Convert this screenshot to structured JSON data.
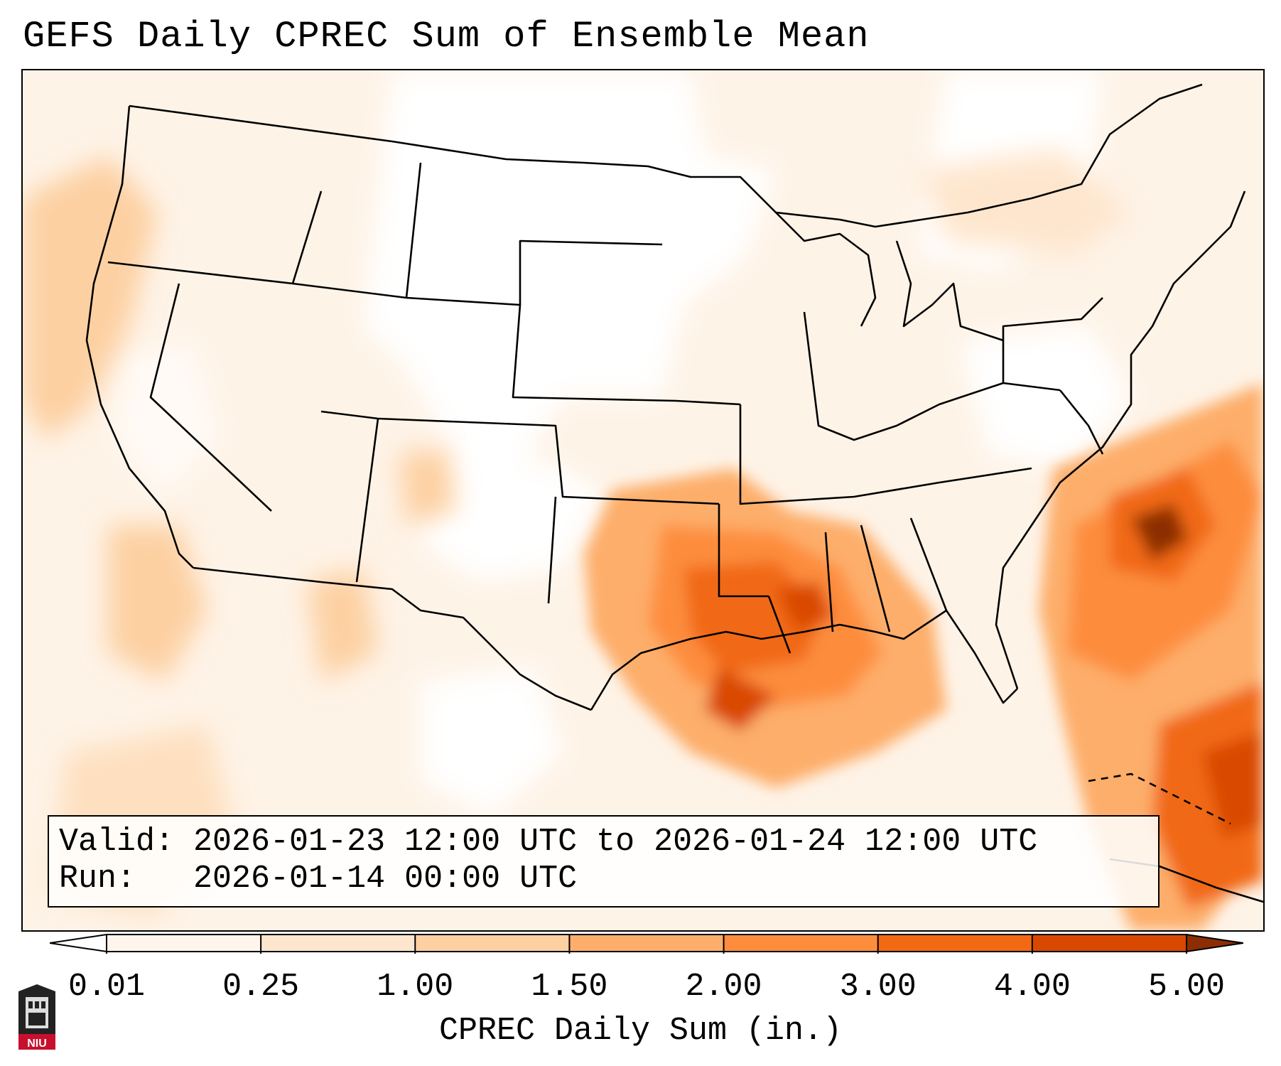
{
  "title": "GEFS Daily CPREC Sum of Ensemble Mean",
  "info": {
    "valid_line": "Valid: 2026-01-23 12:00 UTC to 2026-01-24 12:00 UTC",
    "run_line": "Run:   2026-01-14 00:00 UTC"
  },
  "colorbar": {
    "label": "CPREC Daily Sum (in.)",
    "ticks": [
      "0.01",
      "0.25",
      "1.00",
      "1.50",
      "2.00",
      "3.00",
      "4.00",
      "5.00"
    ],
    "colors": [
      "#fff5ec",
      "#fee6ce",
      "#fdd0a2",
      "#fdae6b",
      "#fd8d3c",
      "#f16913",
      "#d94801",
      "#8c2d04"
    ]
  },
  "logo": {
    "text": "NIU"
  },
  "precip_features": [
    {
      "region": "Lower Mississippi Valley",
      "level": 3.0
    },
    {
      "region": "Western Atlantic off Carolinas",
      "level": 5.0
    },
    {
      "region": "Northern Caribbean",
      "level": 5.0
    },
    {
      "region": "Gulf Coast",
      "level": 2.0
    }
  ]
}
